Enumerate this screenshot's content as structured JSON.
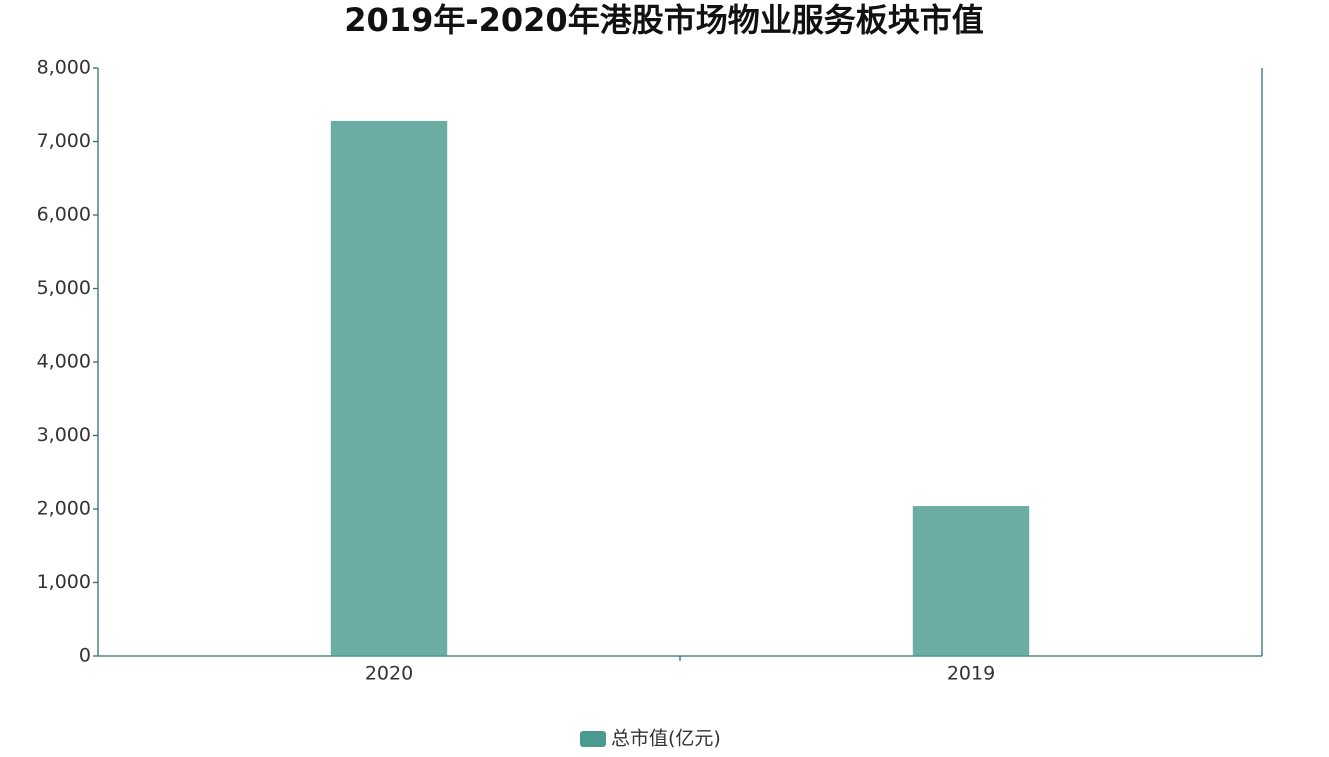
{
  "chart_data": {
    "type": "bar",
    "title": "2019年-2020年港股市场物业服务板块市值",
    "categories": [
      "2020",
      "2019"
    ],
    "series": [
      {
        "name": "总市值(亿元)",
        "color": "#4a9a8f",
        "values": [
          7280,
          2040
        ]
      }
    ],
    "ylim": [
      0,
      8000
    ],
    "yticks": [
      0,
      {
        "value": 1000,
        "label": "1,000"
      },
      {
        "value": 2000,
        "label": "2,000"
      },
      {
        "value": 3000,
        "label": "3,000"
      },
      {
        "value": 4000,
        "label": "4,000"
      },
      {
        "value": 5000,
        "label": "5,000"
      },
      {
        "value": 6000,
        "label": "6,000"
      },
      {
        "value": 7000,
        "label": "7,000"
      },
      {
        "value": 8000,
        "label": "8,000"
      }
    ],
    "grid": false
  }
}
